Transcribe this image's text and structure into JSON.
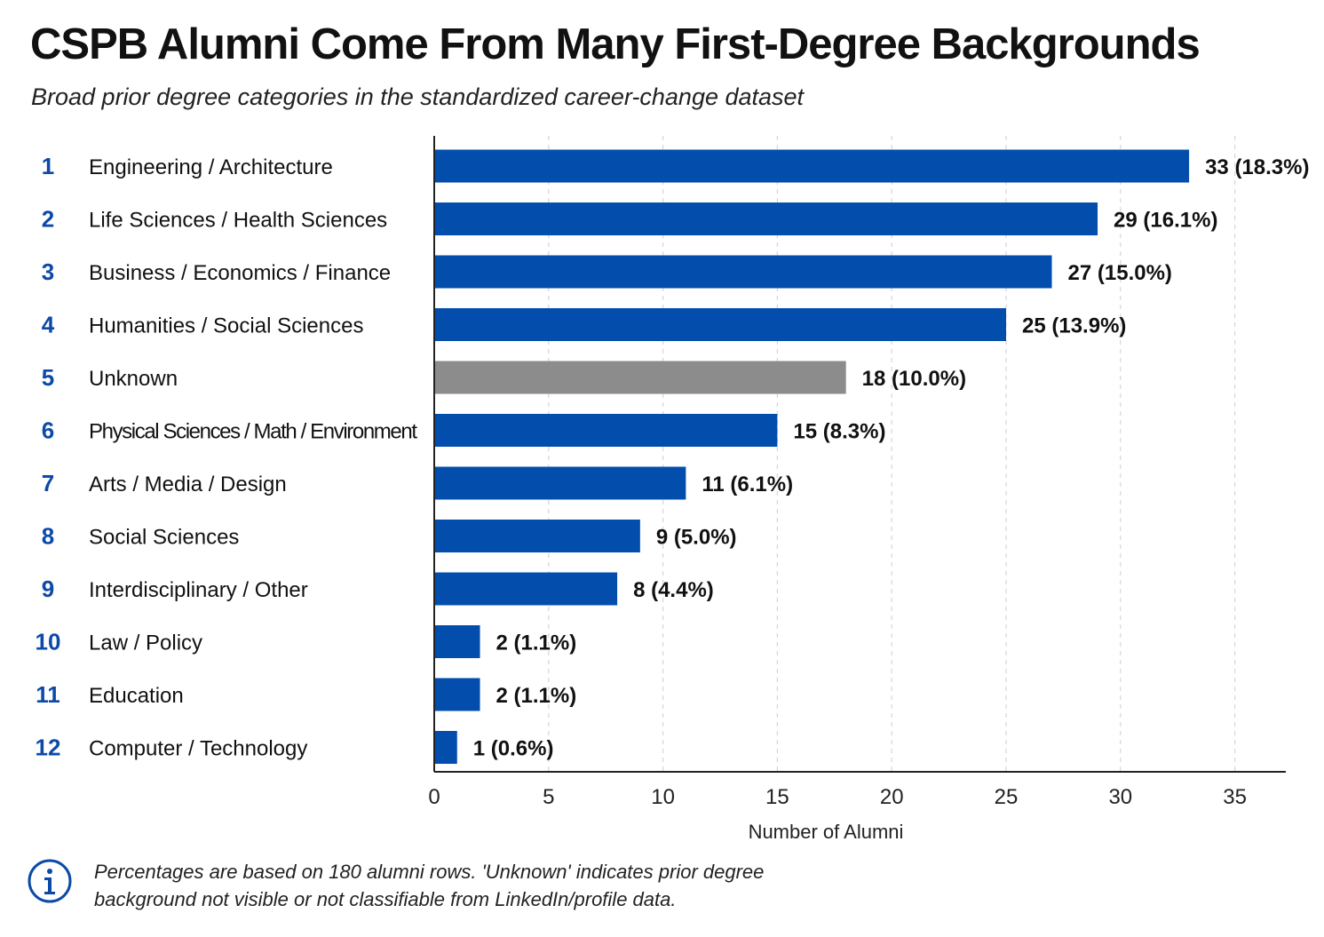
{
  "title": "CSPB Alumni Come From Many First-Degree Backgrounds",
  "subtitle": "Broad prior degree categories in the standardized career-change dataset",
  "note": "Percentages are based on 180 alumni rows. 'Unknown' indicates prior degree background not visible or not classifiable from LinkedIn/profile data.",
  "note_icon": "info-icon",
  "colors": {
    "bar": "#034EAD",
    "unknown_bar": "#8C8C8C",
    "rank": "#0B4AA8"
  },
  "chart_data": {
    "type": "bar",
    "orientation": "horizontal",
    "title": "CSPB Alumni Come From Many First-Degree Backgrounds",
    "xlabel": "Number of Alumni",
    "ylabel": "",
    "xlim": [
      0,
      35
    ],
    "xticks": [
      0,
      5,
      10,
      15,
      20,
      25,
      30,
      35
    ],
    "grid": "vertical dashed",
    "ranks": [
      1,
      2,
      3,
      4,
      5,
      6,
      7,
      8,
      9,
      10,
      11,
      12
    ],
    "categories": [
      "Engineering / Architecture",
      "Life Sciences / Health Sciences",
      "Business / Economics / Finance",
      "Humanities / Social Sciences",
      "Unknown",
      "Physical Sciences / Math / Environment",
      "Arts / Media / Design",
      "Social Sciences",
      "Interdisciplinary / Other",
      "Law / Policy",
      "Education",
      "Computer / Technology"
    ],
    "values": [
      33,
      29,
      27,
      25,
      18,
      15,
      11,
      9,
      8,
      2,
      2,
      1
    ],
    "percents": [
      "18.3%",
      "16.1%",
      "15.0%",
      "13.9%",
      "10.0%",
      "8.3%",
      "6.1%",
      "5.0%",
      "4.4%",
      "1.1%",
      "1.1%",
      "0.6%"
    ],
    "highlight_gray": [
      "Unknown"
    ]
  }
}
